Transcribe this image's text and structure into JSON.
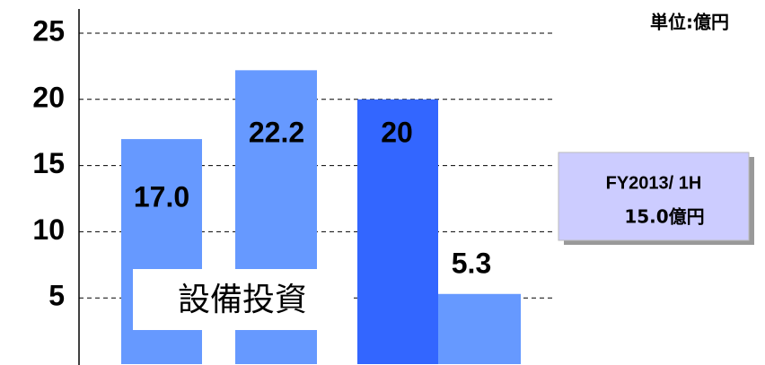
{
  "chart_data": {
    "type": "bar",
    "values": [
      17.0,
      22.2,
      20,
      5.3
    ],
    "value_labels": [
      "17.0",
      "22.2",
      "20",
      "5.3"
    ],
    "colors": [
      "#6699ff",
      "#6699ff",
      "#3366ff",
      "#6699ff"
    ],
    "ylim": [
      0,
      25
    ],
    "yticks": [
      5,
      10,
      15,
      20,
      25
    ],
    "grid": true,
    "unit_label": "単位:億円",
    "series_label": "設備投資",
    "note": [
      "FY2013/ 1H",
      "15.0億円"
    ]
  }
}
